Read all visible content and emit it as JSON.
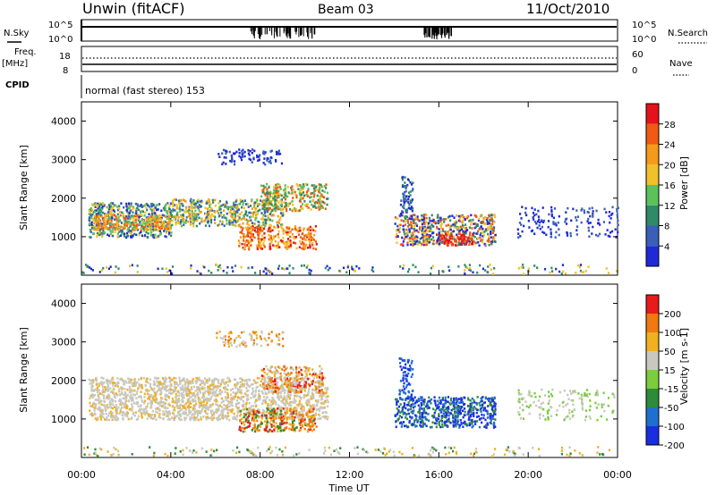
{
  "header": {
    "station": "Unwin (fitACF)",
    "beam": "Beam 03",
    "date": "11/Oct/2010"
  },
  "left_labels": {
    "nsky": "N.Sky",
    "freq": "Freq.",
    "freq_unit": "[MHz]",
    "cpid": "CPID"
  },
  "right_labels": {
    "nsearch": "N.Search",
    "nave": "Nave"
  },
  "cpid_text": "normal (fast stereo) 153",
  "chart_data": [
    {
      "type": "line",
      "name": "noise",
      "yticks_left": [
        "10^5",
        "10^0"
      ],
      "yticks_right": [
        "10^5",
        "10^0"
      ]
    },
    {
      "type": "line",
      "name": "frequency-nave",
      "yticks_left": [
        "18",
        "8"
      ],
      "yticks_right": [
        "60",
        "0"
      ]
    },
    {
      "type": "heatmap",
      "name": "power",
      "ylabel": "Slant Range [km]",
      "xlabel": "Time UT",
      "xlim": [
        0,
        24
      ],
      "ylim": [
        0,
        4500
      ],
      "yticks": [
        1000,
        2000,
        3000,
        4000
      ],
      "xticks": [
        "00:00",
        "04:00",
        "08:00",
        "12:00",
        "16:00",
        "20:00",
        "00:00"
      ],
      "colorbar": {
        "label": "Power [dB]",
        "ticks": [
          "4",
          "8",
          "12",
          "16",
          "20",
          "24",
          "28"
        ],
        "colors": [
          "#1f2ad6",
          "#3a5fb8",
          "#2f8a6a",
          "#5cc15a",
          "#f0c02a",
          "#f59a1a",
          "#f05a12",
          "#e6121a"
        ]
      }
    },
    {
      "type": "heatmap",
      "name": "velocity",
      "ylabel": "Slant Range [km]",
      "xlabel": "Time UT",
      "xlim": [
        0,
        24
      ],
      "ylim": [
        0,
        4500
      ],
      "yticks": [
        1000,
        2000,
        3000,
        4000
      ],
      "xticks": [
        "00:00",
        "04:00",
        "08:00",
        "12:00",
        "16:00",
        "20:00",
        "00:00"
      ],
      "colorbar": {
        "label": "Velocity [m s-1]",
        "ticks": [
          "200",
          "100",
          "50",
          "15",
          "-15",
          "-50",
          "-100",
          "-200"
        ],
        "colors": [
          "#1a2ee0",
          "#1f6fd0",
          "#2e8b3a",
          "#7ccd3c",
          "#c8c8c0",
          "#f0b020",
          "#f07a10",
          "#e81a1a"
        ]
      }
    }
  ],
  "bottom": {
    "xlabel": "Time UT",
    "xticks": [
      "00:00",
      "04:00",
      "08:00",
      "12:00",
      "16:00",
      "20:00",
      "00:00"
    ]
  }
}
